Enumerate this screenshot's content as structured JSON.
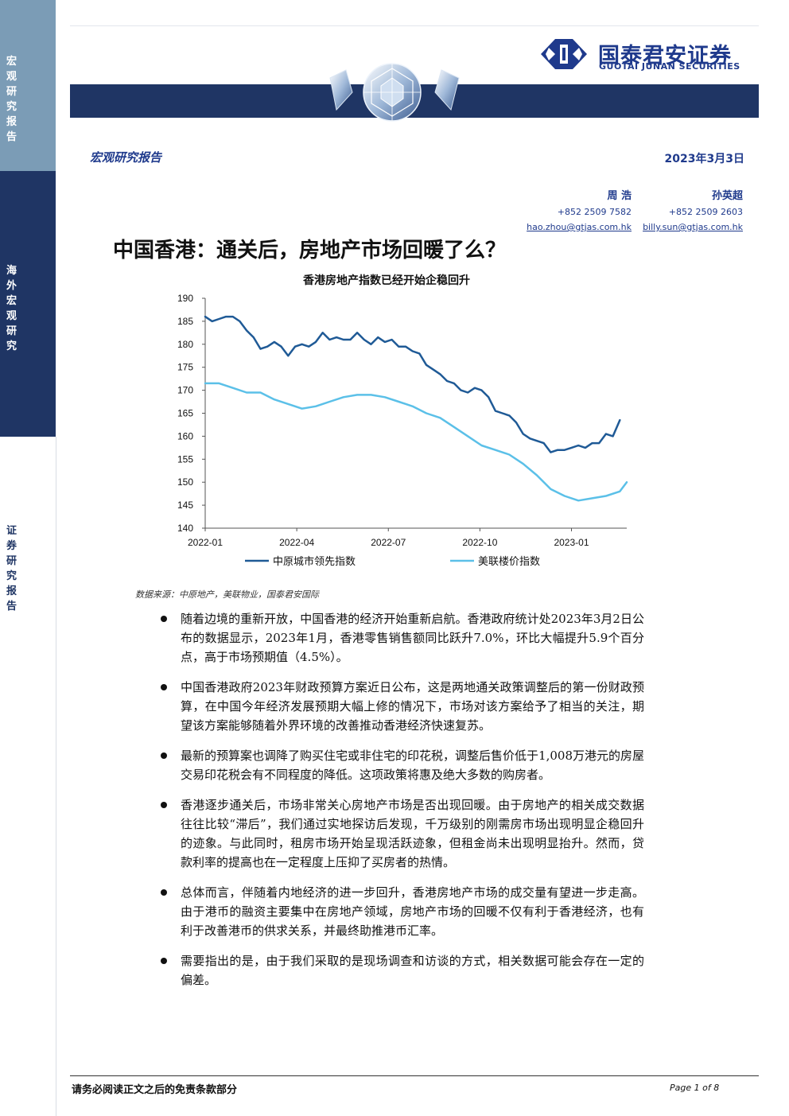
{
  "sidebar": {
    "sections": [
      {
        "label": "宏观研究报告",
        "color": "#7b9cb6"
      },
      {
        "label": "海外宏观研究",
        "color": "#1f3564"
      },
      {
        "label": "证券研究报告",
        "color": "#ffffff"
      }
    ]
  },
  "brand": {
    "name_cn": "国泰君安证券",
    "name_en": "GUOTAI JUNAN SECURITIES",
    "color": "#1f3a8c",
    "icon": "brand-logo-icon"
  },
  "header": {
    "report_type": "宏观研究报告",
    "date": "2023年3月3日"
  },
  "authors": [
    {
      "name": "周 浩",
      "phone": "+852 2509 7582",
      "email": "hao.zhou@gtjas.com.hk"
    },
    {
      "name": "孙英超",
      "phone": "+852 2509 2603",
      "email": "billy.sun@gtjas.com.hk"
    }
  ],
  "title": "中国香港：通关后，房地产市场回暖了么？",
  "chart_data": {
    "type": "line",
    "title": "香港房地产指数已经开始企稳回升",
    "x_ticks": [
      "2022-01",
      "2022-04",
      "2022-07",
      "2022-10",
      "2023-01"
    ],
    "ylim": [
      140,
      190
    ],
    "y_ticks": [
      190,
      185,
      180,
      175,
      170,
      165,
      160,
      155,
      150,
      145,
      140
    ],
    "xlim": [
      0,
      61
    ],
    "legend_position": "bottom",
    "series": [
      {
        "name": "中原城市领先指数",
        "color": "#1f5a96",
        "x": [
          0,
          1,
          2,
          3,
          4,
          5,
          6,
          7,
          8,
          9,
          10,
          11,
          12,
          13,
          14,
          15,
          16,
          17,
          18,
          19,
          20,
          21,
          22,
          23,
          24,
          25,
          26,
          27,
          28,
          29,
          30,
          31,
          32,
          33,
          34,
          35,
          36,
          37,
          38,
          39,
          40,
          41,
          42,
          43,
          44,
          45,
          46,
          47,
          48,
          49,
          50,
          51,
          52,
          53,
          54,
          55,
          56,
          57,
          58,
          59,
          60
        ],
        "values": [
          186,
          185,
          185.5,
          186,
          186,
          185,
          183,
          181.5,
          179,
          179.5,
          180.5,
          179.5,
          177.5,
          179.5,
          180,
          179.5,
          180.5,
          182.5,
          181,
          181.5,
          181,
          181,
          182.5,
          181,
          180,
          181.5,
          180.5,
          181,
          179.5,
          179.5,
          178.5,
          178,
          175.5,
          174.5,
          173.5,
          172,
          171.5,
          170,
          169.5,
          170.5,
          170,
          168.5,
          165.5,
          165,
          164.5,
          163,
          160.5,
          159.5,
          159,
          158.5,
          156.5,
          157,
          157,
          157.5,
          158,
          157.5,
          158.5,
          158.5,
          160.5,
          160,
          163.5
        ]
      },
      {
        "name": "美联楼价指数",
        "color": "#5bc0e8",
        "x": [
          0,
          2,
          4,
          6,
          8,
          10,
          12,
          14,
          16,
          18,
          20,
          22,
          24,
          26,
          28,
          30,
          32,
          34,
          36,
          38,
          40,
          42,
          44,
          46,
          48,
          50,
          52,
          54,
          56,
          58,
          60,
          61
        ],
        "values": [
          171.5,
          171.5,
          170.5,
          169.5,
          169.5,
          168,
          167,
          166,
          166.5,
          167.5,
          168.5,
          169,
          169,
          168.5,
          167.5,
          166.5,
          165,
          164,
          162,
          160,
          158,
          157,
          156,
          154,
          151.5,
          148.5,
          147,
          146,
          146.5,
          147,
          148,
          150
        ]
      }
    ]
  },
  "source": "数据来源：中原地产，美联物业，国泰君安国际",
  "bullets": [
    "随着边境的重新开放，中国香港的经济开始重新启航。香港政府统计处2023年3月2日公布的数据显示，2023年1月，香港零售销售额同比跃升7.0%，环比大幅提升5.9个百分点，高于市场预期值（4.5%）。",
    "中国香港政府2023年财政预算方案近日公布，这是两地通关政策调整后的第一份财政预算，在中国今年经济发展预期大幅上修的情况下，市场对该方案给予了相当的关注，期望该方案能够随着外界环境的改善推动香港经济快速复苏。",
    "最新的预算案也调降了购买住宅或非住宅的印花税，调整后售价低于1,008万港元的房屋交易印花税会有不同程度的降低。这项政策将惠及绝大多数的购房者。",
    "香港逐步通关后，市场非常关心房地产市场是否出现回暖。由于房地产的相关成交数据往往比较“滞后”，我们通过实地探访后发现，千万级别的刚需房市场出现明显企稳回升的迹象。与此同时，租房市场开始呈现活跃迹象，但租金尚未出现明显抬升。然而，贷款利率的提高也在一定程度上压抑了买房者的热情。",
    "总体而言，伴随着内地经济的进一步回升，香港房地产市场的成交量有望进一步走高。由于港币的融资主要集中在房地产领域，房地产市场的回暖不仅有利于香港经济，也有利于改善港币的供求关系，并最终助推港币汇率。",
    "需要指出的是，由于我们采取的是现场调查和访谈的方式，相关数据可能会存在一定的偏差。"
  ],
  "footer": {
    "disclaimer": "请务必阅读正文之后的免责条款部分",
    "page": "Page 1 of 8"
  }
}
